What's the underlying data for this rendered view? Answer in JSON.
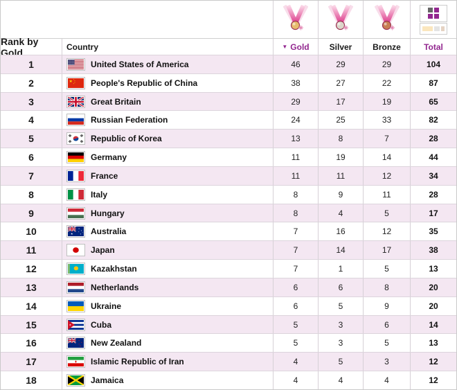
{
  "table": {
    "columns": {
      "rank": {
        "label": "Rank by Gold"
      },
      "country": {
        "label": "Country"
      },
      "gold": {
        "label": "Gold",
        "sort_indicator": "▼",
        "sorted": "descending",
        "icon": "gold-medal-icon"
      },
      "silver": {
        "label": "Silver",
        "icon": "silver-medal-icon"
      },
      "bronze": {
        "label": "Bronze",
        "icon": "bronze-medal-icon"
      },
      "total": {
        "label": "Total",
        "icon": "view-switcher-icon"
      }
    },
    "rows": [
      {
        "rank": 1,
        "country": "United States of America",
        "flag": "us",
        "gold": 46,
        "silver": 29,
        "bronze": 29,
        "total": 104
      },
      {
        "rank": 2,
        "country": "People's Republic of China",
        "flag": "cn",
        "gold": 38,
        "silver": 27,
        "bronze": 22,
        "total": 87
      },
      {
        "rank": 3,
        "country": "Great Britain",
        "flag": "gb",
        "gold": 29,
        "silver": 17,
        "bronze": 19,
        "total": 65
      },
      {
        "rank": 4,
        "country": "Russian Federation",
        "flag": "ru",
        "gold": 24,
        "silver": 25,
        "bronze": 33,
        "total": 82
      },
      {
        "rank": 5,
        "country": "Republic of Korea",
        "flag": "kr",
        "gold": 13,
        "silver": 8,
        "bronze": 7,
        "total": 28
      },
      {
        "rank": 6,
        "country": "Germany",
        "flag": "de",
        "gold": 11,
        "silver": 19,
        "bronze": 14,
        "total": 44
      },
      {
        "rank": 7,
        "country": "France",
        "flag": "fr",
        "gold": 11,
        "silver": 11,
        "bronze": 12,
        "total": 34
      },
      {
        "rank": 8,
        "country": "Italy",
        "flag": "it",
        "gold": 8,
        "silver": 9,
        "bronze": 11,
        "total": 28
      },
      {
        "rank": 9,
        "country": "Hungary",
        "flag": "hu",
        "gold": 8,
        "silver": 4,
        "bronze": 5,
        "total": 17
      },
      {
        "rank": 10,
        "country": "Australia",
        "flag": "au",
        "gold": 7,
        "silver": 16,
        "bronze": 12,
        "total": 35
      },
      {
        "rank": 11,
        "country": "Japan",
        "flag": "jp",
        "gold": 7,
        "silver": 14,
        "bronze": 17,
        "total": 38
      },
      {
        "rank": 12,
        "country": "Kazakhstan",
        "flag": "kz",
        "gold": 7,
        "silver": 1,
        "bronze": 5,
        "total": 13
      },
      {
        "rank": 13,
        "country": "Netherlands",
        "flag": "nl",
        "gold": 6,
        "silver": 6,
        "bronze": 8,
        "total": 20
      },
      {
        "rank": 14,
        "country": "Ukraine",
        "flag": "ua",
        "gold": 6,
        "silver": 5,
        "bronze": 9,
        "total": 20
      },
      {
        "rank": 15,
        "country": "Cuba",
        "flag": "cu",
        "gold": 5,
        "silver": 3,
        "bronze": 6,
        "total": 14
      },
      {
        "rank": 16,
        "country": "New Zealand",
        "flag": "nz",
        "gold": 5,
        "silver": 3,
        "bronze": 5,
        "total": 13
      },
      {
        "rank": 17,
        "country": "Islamic Republic of Iran",
        "flag": "ir",
        "gold": 4,
        "silver": 5,
        "bronze": 3,
        "total": 12
      },
      {
        "rank": 18,
        "country": "Jamaica",
        "flag": "jm",
        "gold": 4,
        "silver": 4,
        "bronze": 4,
        "total": 12
      }
    ]
  },
  "colors": {
    "accent_purple": "#92278f",
    "row_stripe_pink": "#f4e7f2",
    "gold_medal": "#E6BC6E",
    "silver_medal": "#DCD6CA",
    "bronze_medal": "#C87E53",
    "ribbon_pink": "#DD3D8C"
  }
}
